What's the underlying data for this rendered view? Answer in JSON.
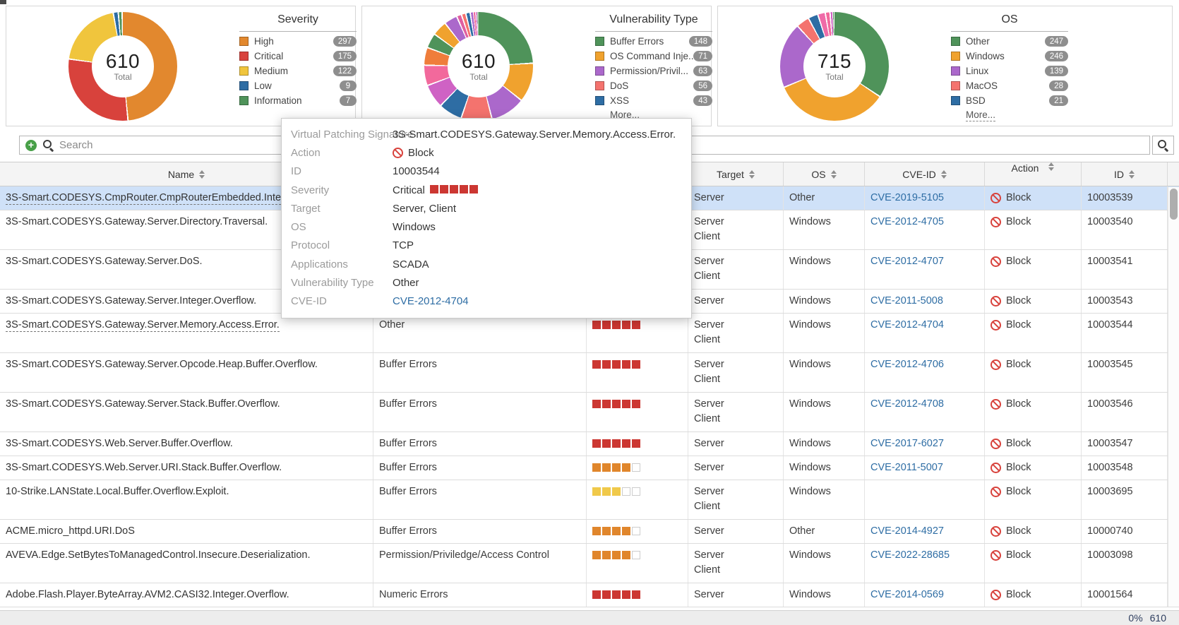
{
  "chart_data": [
    {
      "type": "pie",
      "id": "severity",
      "title": "Severity",
      "total": "610",
      "center_label": "Total",
      "more_label": null,
      "segments": [
        {
          "label": "High",
          "value": 297,
          "color": "#e2882e"
        },
        {
          "label": "Critical",
          "value": 175,
          "color": "#d8423c"
        },
        {
          "label": "Medium",
          "value": 122,
          "color": "#f0c53d"
        },
        {
          "label": "Low",
          "value": 9,
          "color": "#2e6da4"
        },
        {
          "label": "Information",
          "value": 7,
          "color": "#4f935a"
        }
      ]
    },
    {
      "type": "pie",
      "id": "vulnerability-type",
      "title": "Vulnerability Type",
      "total": "610",
      "center_label": "Total",
      "more_label": "More...",
      "segments": [
        {
          "label": "Buffer Errors",
          "value": 148,
          "color": "#4f935a"
        },
        {
          "label": "OS Command Inje...",
          "value": 71,
          "color": "#f0a22e"
        },
        {
          "label": "Permission/Privil...",
          "value": 63,
          "color": "#ab68cb"
        },
        {
          "label": "DoS",
          "value": 56,
          "color": "#f4736e"
        },
        {
          "label": "XSS",
          "value": 43,
          "color": "#2e6da4"
        },
        {
          "value": 43,
          "color": "#cf62c4",
          "legend": false
        },
        {
          "value": 37,
          "color": "#f2699c",
          "legend": false
        },
        {
          "value": 32,
          "color": "#ef7d3b",
          "legend": false
        },
        {
          "value": 27,
          "color": "#4f935a",
          "legend": false
        },
        {
          "value": 27,
          "color": "#f0a22e",
          "legend": false
        },
        {
          "value": 24,
          "color": "#ab68cb",
          "legend": false
        },
        {
          "value": 9,
          "color": "#e05fa0",
          "legend": false
        },
        {
          "value": 8,
          "color": "#f4736e",
          "legend": false
        },
        {
          "value": 8,
          "color": "#2e6da4",
          "legend": false
        },
        {
          "value": 5,
          "color": "#ab68cb",
          "legend": false
        },
        {
          "value": 4,
          "color": "#f2699c",
          "legend": false
        },
        {
          "value": 3,
          "color": "#cf62c4",
          "legend": false
        },
        {
          "value": 2,
          "color": "#4f935a",
          "legend": false
        }
      ]
    },
    {
      "type": "pie",
      "id": "os",
      "title": "OS",
      "total": "715",
      "center_label": "Total",
      "more_label": "More...",
      "segments": [
        {
          "label": "Other",
          "value": 247,
          "color": "#4f935a"
        },
        {
          "label": "Windows",
          "value": 246,
          "color": "#f0a22e"
        },
        {
          "label": "Linux",
          "value": 139,
          "color": "#ab68cb"
        },
        {
          "label": "MacOS",
          "value": 28,
          "color": "#f4736e"
        },
        {
          "label": "BSD",
          "value": 21,
          "color": "#2e6da4"
        },
        {
          "value": 16,
          "color": "#ef6ba8",
          "legend": false
        },
        {
          "value": 10,
          "color": "#f2699c",
          "legend": false
        },
        {
          "value": 5,
          "color": "#cf62c4",
          "legend": false
        },
        {
          "value": 3,
          "color": "#4f935a",
          "legend": false
        }
      ]
    }
  ],
  "search": {
    "placeholder": "Search"
  },
  "table": {
    "headers": [
      {
        "key": "name",
        "label": "Name",
        "sort": true
      },
      {
        "key": "vt",
        "label": "",
        "sort": false
      },
      {
        "key": "sev",
        "label": "",
        "sort": false
      },
      {
        "key": "target",
        "label": "Target",
        "sort": true
      },
      {
        "key": "os",
        "label": "OS",
        "sort": true
      },
      {
        "key": "cve",
        "label": "CVE-ID",
        "sort": true
      },
      {
        "key": "action",
        "label": "Action",
        "sort": true
      },
      {
        "key": "id",
        "label": "ID",
        "sort": true
      }
    ],
    "severity_colors": {
      "red": "#cc3732",
      "orange": "#e0862c",
      "yellow": "#f0c94a"
    },
    "rows": [
      {
        "name": "3S-Smart.CODESYS.CmpRouter.CmpRouterEmbedded.Inte",
        "vuln_type": "",
        "severity": null,
        "target": [
          "Server"
        ],
        "os": "Other",
        "cve": "CVE-2019-5105",
        "action": "Block",
        "id": "10003539",
        "selected": true,
        "underline": true
      },
      {
        "name": "3S-Smart.CODESYS.Gateway.Server.Directory.Traversal.",
        "vuln_type": "",
        "severity": null,
        "target": [
          "Server",
          "Client"
        ],
        "os": "Windows",
        "cve": "CVE-2012-4705",
        "action": "Block",
        "id": "10003540"
      },
      {
        "name": "3S-Smart.CODESYS.Gateway.Server.DoS.",
        "vuln_type": "",
        "severity": null,
        "target": [
          "Server",
          "Client"
        ],
        "os": "Windows",
        "cve": "CVE-2012-4707",
        "action": "Block",
        "id": "10003541"
      },
      {
        "name": "3S-Smart.CODESYS.Gateway.Server.Integer.Overflow.",
        "vuln_type": "",
        "severity": null,
        "target": [
          "Server"
        ],
        "os": "Windows",
        "cve": "CVE-2011-5008",
        "action": "Block",
        "id": "10003543"
      },
      {
        "name": "3S-Smart.CODESYS.Gateway.Server.Memory.Access.Error.",
        "vuln_type": "Other",
        "severity": {
          "filled": 5,
          "color": "red"
        },
        "target": [
          "Server",
          "Client"
        ],
        "os": "Windows",
        "cve": "CVE-2012-4704",
        "action": "Block",
        "id": "10003544",
        "underline": true
      },
      {
        "name": "3S-Smart.CODESYS.Gateway.Server.Opcode.Heap.Buffer.Overflow.",
        "vuln_type": "Buffer Errors",
        "severity": {
          "filled": 5,
          "color": "red"
        },
        "target": [
          "Server",
          "Client"
        ],
        "os": "Windows",
        "cve": "CVE-2012-4706",
        "action": "Block",
        "id": "10003545"
      },
      {
        "name": "3S-Smart.CODESYS.Gateway.Server.Stack.Buffer.Overflow.",
        "vuln_type": "Buffer Errors",
        "severity": {
          "filled": 5,
          "color": "red"
        },
        "target": [
          "Server",
          "Client"
        ],
        "os": "Windows",
        "cve": "CVE-2012-4708",
        "action": "Block",
        "id": "10003546"
      },
      {
        "name": "3S-Smart.CODESYS.Web.Server.Buffer.Overflow.",
        "vuln_type": "Buffer Errors",
        "severity": {
          "filled": 5,
          "color": "red"
        },
        "target": [
          "Server"
        ],
        "os": "Windows",
        "cve": "CVE-2017-6027",
        "action": "Block",
        "id": "10003547"
      },
      {
        "name": "3S-Smart.CODESYS.Web.Server.URI.Stack.Buffer.Overflow.",
        "vuln_type": "Buffer Errors",
        "severity": {
          "filled": 4,
          "color": "orange"
        },
        "target": [
          "Server"
        ],
        "os": "Windows",
        "cve": "CVE-2011-5007",
        "action": "Block",
        "id": "10003548"
      },
      {
        "name": "10-Strike.LANState.Local.Buffer.Overflow.Exploit.",
        "vuln_type": "Buffer Errors",
        "severity": {
          "filled": 3,
          "color": "yellow"
        },
        "target": [
          "Server",
          "Client"
        ],
        "os": "Windows",
        "cve": "",
        "action": "Block",
        "id": "10003695"
      },
      {
        "name": "ACME.micro_httpd.URI.DoS",
        "vuln_type": "Buffer Errors",
        "severity": {
          "filled": 4,
          "color": "orange"
        },
        "target": [
          "Server"
        ],
        "os": "Other",
        "cve": "CVE-2014-4927",
        "action": "Block",
        "id": "10000740"
      },
      {
        "name": "AVEVA.Edge.SetBytesToManagedControl.Insecure.Deserialization.",
        "vuln_type": "Permission/Priviledge/Access Control",
        "severity": {
          "filled": 4,
          "color": "orange"
        },
        "target": [
          "Server",
          "Client"
        ],
        "os": "Windows",
        "cve": "CVE-2022-28685",
        "action": "Block",
        "id": "10003098"
      },
      {
        "name": "Adobe.Flash.Player.ByteArray.AVM2.CASI32.Integer.Overflow.",
        "vuln_type": "Numeric Errors",
        "severity": {
          "filled": 5,
          "color": "red"
        },
        "target": [
          "Server"
        ],
        "os": "Windows",
        "cve": "CVE-2014-0569",
        "action": "Block",
        "id": "10001564"
      }
    ]
  },
  "tooltip": {
    "rows": [
      {
        "label": "Virtual Patching Signature",
        "value": "3S-Smart.CODESYS.Gateway.Server.Memory.Access.Error.",
        "type": "text"
      },
      {
        "label": "Action",
        "value": "Block",
        "type": "block"
      },
      {
        "label": "ID",
        "value": "10003544",
        "type": "text"
      },
      {
        "label": "Severity",
        "value": "Critical",
        "type": "severity",
        "filled": 5
      },
      {
        "label": "Target",
        "value": "Server, Client",
        "type": "text"
      },
      {
        "label": "OS",
        "value": "Windows",
        "type": "text"
      },
      {
        "label": "Protocol",
        "value": "TCP",
        "type": "text"
      },
      {
        "label": "Applications",
        "value": "SCADA",
        "type": "text"
      },
      {
        "label": "Vulnerability Type",
        "value": "Other",
        "type": "text"
      },
      {
        "label": "CVE-ID",
        "value": "CVE-2012-4704",
        "type": "link"
      }
    ]
  },
  "footer": {
    "percent": "0%",
    "count": "610"
  }
}
